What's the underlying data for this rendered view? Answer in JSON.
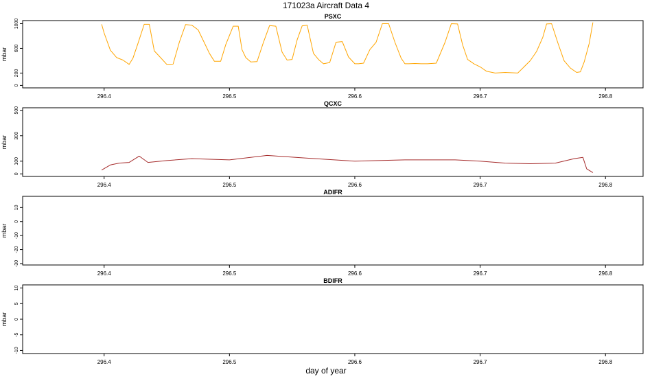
{
  "page": {
    "title": "171023a   Aircraft Data 4",
    "xlabel": "day of year"
  },
  "chart_data": [
    {
      "type": "line",
      "title": "PSXC",
      "ylabel": "mbar",
      "color": "#FFA500",
      "xlim": [
        296.335,
        296.83
      ],
      "ylim": [
        -40,
        1050
      ],
      "x_ticks": [
        296.4,
        296.5,
        296.6,
        296.7,
        296.8
      ],
      "x_tick_labels": [
        "296.4",
        "296.5",
        "296.6",
        "296.7",
        "296.8"
      ],
      "y_ticks": [
        0,
        200,
        600,
        1000
      ],
      "y_tick_labels": [
        "0",
        "200",
        "600",
        "1000"
      ],
      "series": [
        {
          "x": [
            296.398,
            296.4,
            296.405,
            296.41,
            296.415,
            296.42,
            296.423,
            296.427,
            296.432,
            296.436,
            296.44,
            296.445,
            296.45,
            296.455,
            296.46,
            296.465,
            296.47,
            296.475,
            296.48,
            296.484,
            296.488,
            296.493,
            296.497,
            296.503,
            296.507,
            296.51,
            296.513,
            296.517,
            296.522,
            296.527,
            296.532,
            296.537,
            296.542,
            296.546,
            296.55,
            296.554,
            296.558,
            296.562,
            296.567,
            296.571,
            296.575,
            296.58,
            296.585,
            296.59,
            296.595,
            296.6,
            296.603,
            296.607,
            296.612,
            296.617,
            296.622,
            296.627,
            296.632,
            296.637,
            296.64,
            296.643,
            296.648,
            296.653,
            296.658,
            296.665,
            296.672,
            296.677,
            296.682,
            296.686,
            296.69,
            296.695,
            296.7,
            296.705,
            296.712,
            296.72,
            296.73,
            296.74,
            296.745,
            296.75,
            296.753,
            296.757,
            296.762,
            296.767,
            296.772,
            296.777,
            296.78,
            296.783,
            296.787,
            296.79
          ],
          "y": [
            990,
            850,
            570,
            450,
            410,
            340,
            440,
            680,
            990,
            990,
            560,
            450,
            340,
            345,
            700,
            985,
            975,
            900,
            690,
            520,
            390,
            390,
            660,
            960,
            960,
            580,
            450,
            380,
            385,
            690,
            970,
            960,
            540,
            410,
            420,
            740,
            965,
            975,
            520,
            420,
            350,
            370,
            700,
            710,
            460,
            350,
            350,
            360,
            580,
            700,
            1000,
            1000,
            700,
            440,
            350,
            350,
            355,
            350,
            350,
            360,
            700,
            1000,
            995,
            660,
            420,
            350,
            300,
            230,
            200,
            210,
            200,
            400,
            550,
            780,
            995,
            1000,
            690,
            400,
            280,
            210,
            220,
            380,
            680,
            1020
          ]
        }
      ]
    },
    {
      "type": "line",
      "title": "QCXC",
      "ylabel": "mbar",
      "color": "#A52A2A",
      "xlim": [
        296.335,
        296.83
      ],
      "ylim": [
        -20,
        520
      ],
      "x_ticks": [
        296.4,
        296.5,
        296.6,
        296.7,
        296.8
      ],
      "x_tick_labels": [
        "296.4",
        "296.5",
        "296.6",
        "296.7",
        "296.8"
      ],
      "y_ticks": [
        0,
        100,
        300,
        500
      ],
      "y_tick_labels": [
        "0",
        "100",
        "300",
        "500"
      ],
      "series": [
        {
          "x": [
            296.398,
            296.405,
            296.412,
            296.42,
            296.428,
            296.435,
            296.45,
            296.47,
            296.5,
            296.53,
            296.56,
            296.6,
            296.64,
            296.68,
            296.7,
            296.72,
            296.74,
            296.76,
            296.775,
            296.782,
            296.785,
            296.79
          ],
          "y": [
            30,
            70,
            85,
            90,
            140,
            90,
            105,
            120,
            110,
            145,
            125,
            100,
            110,
            110,
            100,
            85,
            80,
            85,
            120,
            130,
            40,
            10
          ]
        }
      ]
    },
    {
      "type": "line",
      "title": "ADIFR",
      "ylabel": "mbar",
      "xlim": [
        296.335,
        296.83
      ],
      "ylim": [
        -31,
        18
      ],
      "x_ticks": [
        296.4,
        296.5,
        296.6,
        296.7,
        296.8
      ],
      "x_tick_labels": [
        "296.4",
        "296.5",
        "296.6",
        "296.7",
        "296.8"
      ],
      "y_ticks": [
        -30,
        -20,
        -10,
        0,
        10
      ],
      "y_tick_labels": [
        "-30",
        "-20",
        "-10",
        "0",
        "10"
      ],
      "series": []
    },
    {
      "type": "line",
      "title": "BDIFR",
      "ylabel": "mbar",
      "xlim": [
        296.335,
        296.83
      ],
      "ylim": [
        -11,
        11
      ],
      "x_ticks": [
        296.4,
        296.5,
        296.6,
        296.7,
        296.8
      ],
      "x_tick_labels": [
        "296.4",
        "296.5",
        "296.6",
        "296.7",
        "296.8"
      ],
      "y_ticks": [
        -10,
        -5,
        0,
        5,
        10
      ],
      "y_tick_labels": [
        "-10",
        "-5",
        "0",
        "5",
        "10"
      ],
      "series": []
    }
  ]
}
